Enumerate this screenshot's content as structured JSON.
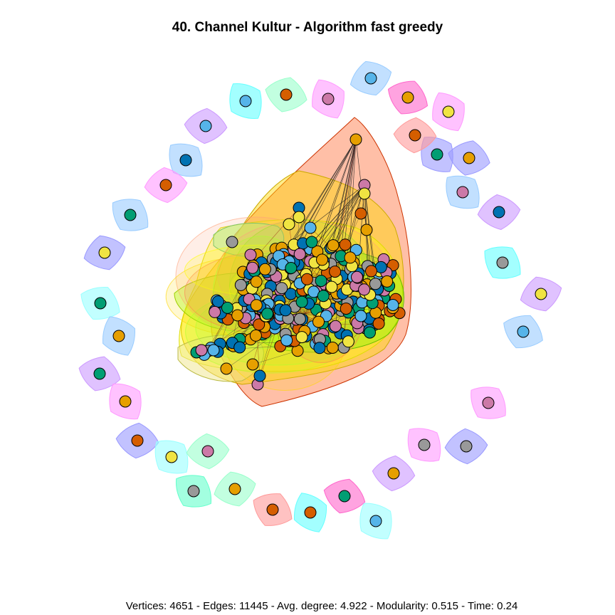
{
  "title": "40. Channel Kultur - Algorithm fast greedy",
  "footer": "Vertices: 4651 - Edges: 11445 - Avg. degree: 4.922 - Modularity: 0.515 - Time: 0.24",
  "node_palette": [
    "#E69F00",
    "#56B4E9",
    "#009E73",
    "#F0E442",
    "#0072B2",
    "#D55E00",
    "#CC79A7",
    "#999999"
  ],
  "hull_palette": [
    "#FF9999",
    "#99FFCC",
    "#66FFFF",
    "#FF99FF",
    "#9999FF",
    "#CC99FF",
    "#99CCFF",
    "#FF66CC",
    "#99FFFF",
    "#66FFCC"
  ],
  "core_hull_colors": [
    "#FF7F50",
    "#FFD700",
    "#FFFF00",
    "#ADFF2F",
    "#7CFC00",
    "#FFA07A",
    "#F0E68C"
  ]
}
